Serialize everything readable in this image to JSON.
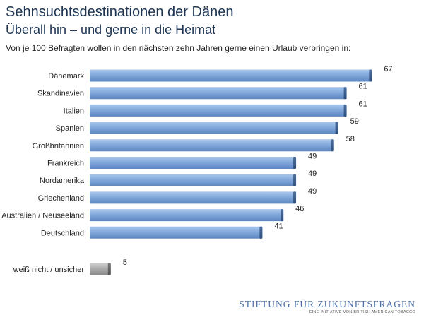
{
  "header": {
    "title": "Sehnsuchtsdestinationen der Dänen",
    "subtitle": "Überall hin – und gerne in die Heimat",
    "description": "Von je 100 Befragten wollen in den nächsten zehn Jahren gerne einen Urlaub verbringen in:"
  },
  "chart_data": {
    "type": "bar",
    "orientation": "horizontal",
    "categories": [
      "Dänemark",
      "Skandinavien",
      "Italien",
      "Spanien",
      "Großbritannien",
      "Frankreich",
      "Nordamerika",
      "Griechenland",
      "Australien / Neuseeland",
      "Deutschland"
    ],
    "values": [
      67,
      61,
      61,
      59,
      58,
      49,
      49,
      49,
      46,
      41
    ],
    "extra_category": "weiß nicht / unsicher",
    "extra_value": 5,
    "xlim": [
      0,
      70
    ],
    "grid": false,
    "bar_color": "#7fa6d9",
    "extra_bar_color": "#a9a9a9"
  },
  "logo": {
    "main": "STIFTUNG FÜR ZUKUNFTSFRAGEN",
    "sub": "EINE INITIATIVE VON BRITISH AMERICAN TOBACCO"
  }
}
